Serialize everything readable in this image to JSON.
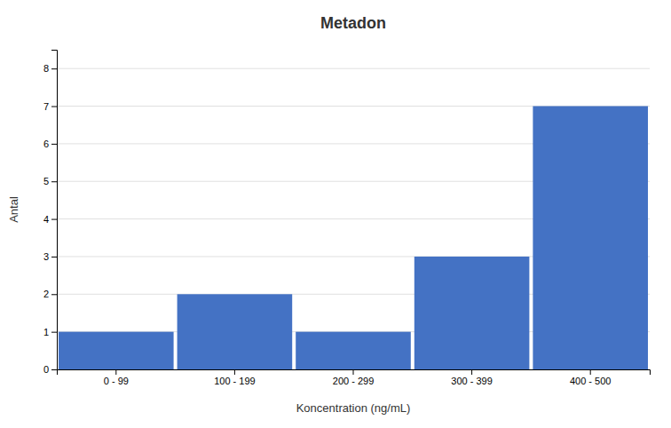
{
  "chart_data": {
    "type": "bar",
    "title": "Metadon",
    "categories": [
      "0 - 99",
      "100 - 199",
      "200 - 299",
      "300 - 399",
      "400 - 500"
    ],
    "values": [
      1,
      2,
      1,
      3,
      7
    ],
    "color": "#4472C4",
    "xlabel": "Koncentration (ng/mL)",
    "ylabel": "Antal",
    "ylim": [
      0,
      8.5
    ],
    "yticks": [
      0,
      1,
      2,
      3,
      4,
      5,
      6,
      7,
      8
    ],
    "grid": true
  }
}
